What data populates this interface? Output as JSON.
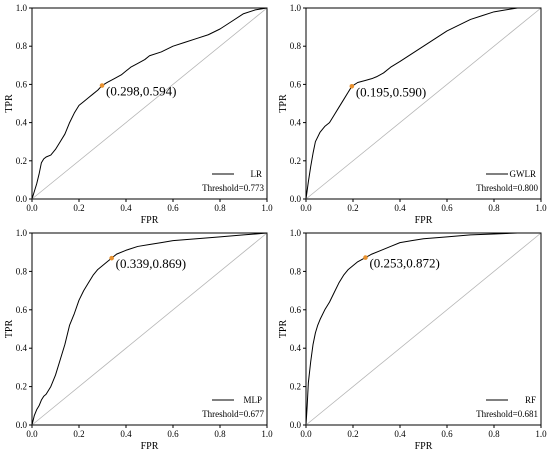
{
  "chart_data": [
    {
      "type": "line",
      "xlabel": "FPR",
      "ylabel": "TPR",
      "xlim": [
        0,
        1
      ],
      "ylim": [
        0,
        1
      ],
      "ticks": [
        "0.0",
        "0.2",
        "0.4",
        "0.6",
        "0.8",
        "1.0"
      ],
      "grid": false,
      "legend": {
        "label": "LR",
        "placement": "bottom-right"
      },
      "threshold_text": "Threshold=0.773",
      "point": {
        "x": 0.298,
        "y": 0.594,
        "label": "(0.298,0.594)"
      },
      "series": [
        {
          "name": "LR",
          "x": [
            0,
            0.01,
            0.02,
            0.03,
            0.04,
            0.05,
            0.06,
            0.08,
            0.1,
            0.12,
            0.14,
            0.16,
            0.18,
            0.2,
            0.22,
            0.24,
            0.26,
            0.28,
            0.298,
            0.32,
            0.35,
            0.38,
            0.4,
            0.42,
            0.45,
            0.48,
            0.5,
            0.55,
            0.6,
            0.65,
            0.7,
            0.75,
            0.8,
            0.85,
            0.9,
            0.95,
            1.0
          ],
          "y": [
            0,
            0.04,
            0.08,
            0.13,
            0.19,
            0.21,
            0.22,
            0.23,
            0.26,
            0.3,
            0.34,
            0.4,
            0.45,
            0.49,
            0.51,
            0.53,
            0.55,
            0.57,
            0.594,
            0.61,
            0.63,
            0.65,
            0.67,
            0.69,
            0.71,
            0.73,
            0.75,
            0.77,
            0.8,
            0.82,
            0.84,
            0.86,
            0.89,
            0.93,
            0.97,
            0.99,
            1.0
          ]
        },
        {
          "name": "",
          "x": [
            0,
            1
          ],
          "y": [
            0,
            1
          ]
        }
      ]
    },
    {
      "type": "line",
      "xlabel": "FPR",
      "ylabel": "TPR",
      "xlim": [
        0,
        1
      ],
      "ylim": [
        0,
        1
      ],
      "ticks": [
        "0.0",
        "0.2",
        "0.4",
        "0.6",
        "0.8",
        "1.0"
      ],
      "grid": false,
      "legend": {
        "label": "GWLR",
        "placement": "bottom-right"
      },
      "threshold_text": "Threshold=0.800",
      "point": {
        "x": 0.195,
        "y": 0.59,
        "label": "(0.195,0.590)"
      },
      "series": [
        {
          "name": "GWLR",
          "x": [
            0,
            0.01,
            0.02,
            0.03,
            0.04,
            0.06,
            0.08,
            0.1,
            0.12,
            0.14,
            0.16,
            0.18,
            0.195,
            0.22,
            0.25,
            0.28,
            0.3,
            0.33,
            0.36,
            0.4,
            0.45,
            0.5,
            0.55,
            0.6,
            0.65,
            0.7,
            0.75,
            0.8,
            0.85,
            0.9,
            0.95,
            1.0
          ],
          "y": [
            0,
            0.09,
            0.17,
            0.24,
            0.3,
            0.35,
            0.38,
            0.4,
            0.44,
            0.48,
            0.52,
            0.56,
            0.59,
            0.61,
            0.62,
            0.63,
            0.64,
            0.66,
            0.69,
            0.72,
            0.76,
            0.8,
            0.84,
            0.88,
            0.91,
            0.94,
            0.96,
            0.98,
            0.99,
            1.0,
            1.0,
            1.0
          ]
        },
        {
          "name": "",
          "x": [
            0,
            1
          ],
          "y": [
            0,
            1
          ]
        }
      ]
    },
    {
      "type": "line",
      "xlabel": "FPR",
      "ylabel": "TPR",
      "xlim": [
        0,
        1
      ],
      "ylim": [
        0,
        1
      ],
      "ticks": [
        "0.0",
        "0.2",
        "0.4",
        "0.6",
        "0.8",
        "1.0"
      ],
      "grid": false,
      "legend": {
        "label": "MLP",
        "placement": "bottom-right"
      },
      "threshold_text": "Threshold=0.677",
      "point": {
        "x": 0.339,
        "y": 0.869,
        "label": "(0.339,0.869)"
      },
      "series": [
        {
          "name": "MLP",
          "x": [
            0,
            0.01,
            0.02,
            0.03,
            0.04,
            0.05,
            0.06,
            0.08,
            0.1,
            0.12,
            0.14,
            0.16,
            0.18,
            0.2,
            0.22,
            0.24,
            0.26,
            0.28,
            0.3,
            0.32,
            0.339,
            0.36,
            0.4,
            0.45,
            0.5,
            0.55,
            0.6,
            0.7,
            0.8,
            0.9,
            1.0
          ],
          "y": [
            0,
            0.05,
            0.08,
            0.1,
            0.13,
            0.15,
            0.16,
            0.2,
            0.26,
            0.34,
            0.42,
            0.52,
            0.58,
            0.65,
            0.7,
            0.74,
            0.78,
            0.81,
            0.83,
            0.85,
            0.869,
            0.89,
            0.91,
            0.93,
            0.94,
            0.95,
            0.96,
            0.97,
            0.98,
            0.99,
            1.0
          ]
        },
        {
          "name": "",
          "x": [
            0,
            1
          ],
          "y": [
            0,
            1
          ]
        }
      ]
    },
    {
      "type": "line",
      "xlabel": "FPR",
      "ylabel": "TPR",
      "xlim": [
        0,
        1
      ],
      "ylim": [
        0,
        1
      ],
      "ticks": [
        "0.0",
        "0.2",
        "0.4",
        "0.6",
        "0.8",
        "1.0"
      ],
      "grid": false,
      "legend": {
        "label": "RF",
        "placement": "bottom-right"
      },
      "threshold_text": "Threshold=0.681",
      "point": {
        "x": 0.253,
        "y": 0.872,
        "label": "(0.253,0.872)"
      },
      "series": [
        {
          "name": "RF",
          "x": [
            0,
            0.005,
            0.01,
            0.02,
            0.03,
            0.04,
            0.05,
            0.06,
            0.08,
            0.1,
            0.12,
            0.14,
            0.16,
            0.18,
            0.2,
            0.22,
            0.253,
            0.28,
            0.32,
            0.36,
            0.4,
            0.45,
            0.5,
            0.6,
            0.7,
            0.8,
            0.9,
            1.0
          ],
          "y": [
            0,
            0.1,
            0.22,
            0.33,
            0.42,
            0.48,
            0.52,
            0.55,
            0.6,
            0.64,
            0.69,
            0.74,
            0.78,
            0.81,
            0.83,
            0.85,
            0.872,
            0.89,
            0.91,
            0.93,
            0.95,
            0.96,
            0.97,
            0.98,
            0.99,
            0.995,
            1.0,
            1.0
          ]
        },
        {
          "name": "",
          "x": [
            0,
            1
          ],
          "y": [
            0,
            1
          ]
        }
      ]
    }
  ]
}
